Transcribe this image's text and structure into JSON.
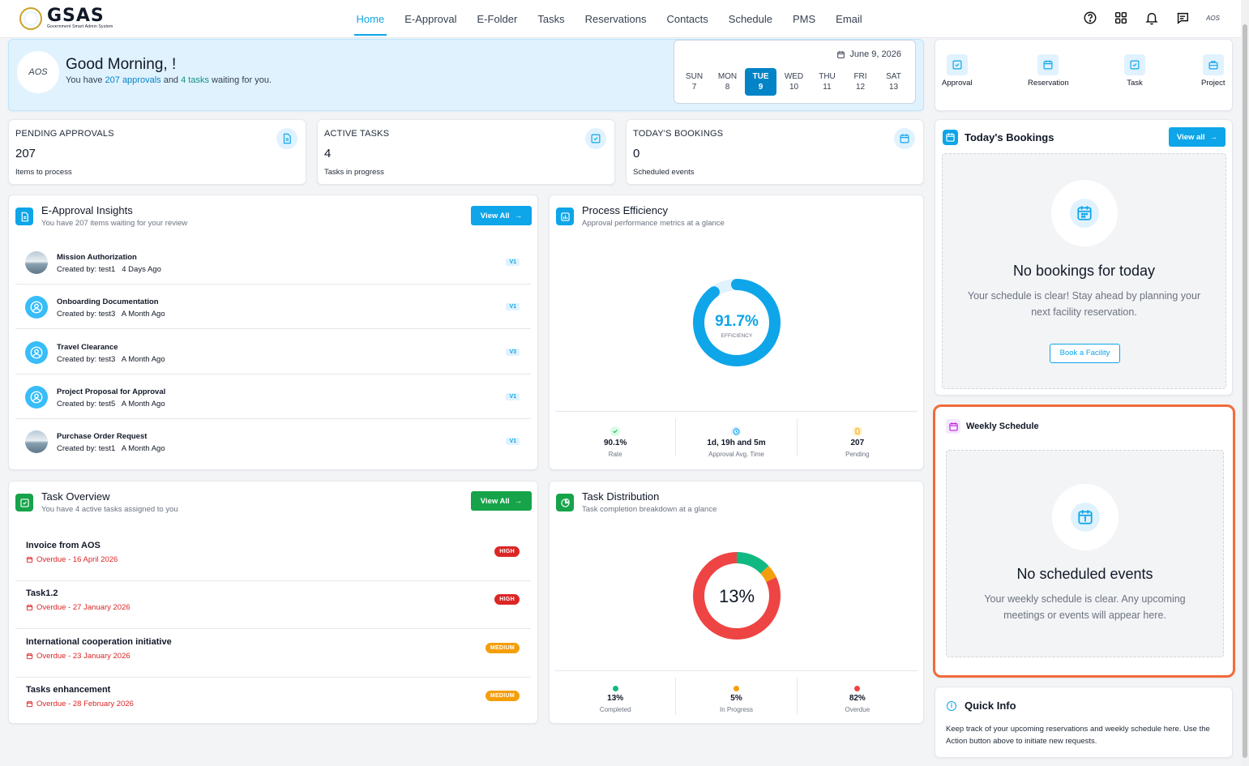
{
  "app": {
    "name": "GSAS",
    "subtitle": "Government Smart Admin System"
  },
  "nav": {
    "items": [
      "Home",
      "E-Approval",
      "E-Folder",
      "Tasks",
      "Reservations",
      "Contacts",
      "Schedule",
      "PMS",
      "Email"
    ],
    "active": "Home"
  },
  "topbar": {
    "icons": [
      "help-icon",
      "apps-grid-icon",
      "bell-icon",
      "chat-icon"
    ],
    "user_initials": "AOS"
  },
  "greeting": {
    "title": "Good Morning, !",
    "line_prefix": "You have ",
    "approvals_text": "207 approvals",
    "mid": " and ",
    "tasks_text": "4 tasks",
    "line_suffix": " waiting for you.",
    "avatar": "AOS"
  },
  "calendar": {
    "date": "June 9, 2026",
    "days": [
      {
        "name": "SUN",
        "num": "7"
      },
      {
        "name": "MON",
        "num": "8"
      },
      {
        "name": "TUE",
        "num": "9"
      },
      {
        "name": "WED",
        "num": "10"
      },
      {
        "name": "THU",
        "num": "11"
      },
      {
        "name": "FRI",
        "num": "12"
      },
      {
        "name": "SAT",
        "num": "13"
      }
    ],
    "today": "TUE"
  },
  "stats": [
    {
      "label": "PENDING APPROVALS",
      "value": "207",
      "note": "Items to process"
    },
    {
      "label": "ACTIVE TASKS",
      "value": "4",
      "note": "Tasks in progress"
    },
    {
      "label": "TODAY'S BOOKINGS",
      "value": "0",
      "note": "Scheduled events"
    }
  ],
  "approvals": {
    "title": "E-Approval Insights",
    "subtitle": "You have 207 items waiting for your review",
    "view_all": "View All",
    "items": [
      {
        "title": "Mission Authorization",
        "meta": "Created by: test1   4 Days Ago",
        "version": "V1",
        "avatar": "photo"
      },
      {
        "title": "Onboarding Documentation",
        "meta": "Created by: test3   A Month Ago",
        "version": "V1",
        "avatar": "user"
      },
      {
        "title": "Travel Clearance",
        "meta": "Created by: test3   A Month Ago",
        "version": "V3",
        "avatar": "user"
      },
      {
        "title": "Project Proposal for Approval",
        "meta": "Created by: test5   A Month Ago",
        "version": "V1",
        "avatar": "user"
      },
      {
        "title": "Purchase Order Request",
        "meta": "Created by: test1   A Month Ago",
        "version": "V1",
        "avatar": "photo"
      }
    ]
  },
  "efficiency": {
    "title": "Process Efficiency",
    "subtitle": "Approval performance metrics at a glance",
    "value": "91.7%",
    "percent": 91.7,
    "label": "EFFICIENCY",
    "metrics": [
      {
        "value": "90.1%",
        "label": "Rate",
        "color": "#22c55e"
      },
      {
        "value": "1d, 19h and 5m",
        "label": "Approval Avg. Time",
        "color": "#0ea5e9"
      },
      {
        "value": "207",
        "label": "Pending",
        "color": "#f59e0b"
      }
    ]
  },
  "tasks": {
    "title": "Task Overview",
    "subtitle": "You have 4 active tasks assigned to you",
    "view_all": "View All",
    "items": [
      {
        "title": "Invoice from AOS",
        "due": "Overdue - 16 April 2026",
        "priority": "HIGH"
      },
      {
        "title": "Task1.2",
        "due": "Overdue - 27 January 2026",
        "priority": "HIGH"
      },
      {
        "title": "International cooperation initiative",
        "due": "Overdue - 23 January 2026",
        "priority": "MEDIUM"
      },
      {
        "title": "Tasks enhancement",
        "due": "Overdue - 28 February 2026",
        "priority": "MEDIUM"
      }
    ]
  },
  "distribution": {
    "title": "Task Distribution",
    "subtitle": "Task completion breakdown at a glance",
    "center": "13%",
    "segments": [
      {
        "value": "13%",
        "label": "Completed",
        "percent": 13,
        "color": "#10b981"
      },
      {
        "value": "5%",
        "label": "In Progress",
        "percent": 5,
        "color": "#f59e0b"
      },
      {
        "value": "82%",
        "label": "Overdue",
        "percent": 82,
        "color": "#ef4444"
      }
    ]
  },
  "quick_actions": [
    {
      "label": "Approval",
      "icon": "file-check-icon"
    },
    {
      "label": "Reservation",
      "icon": "calendar-icon"
    },
    {
      "label": "Task",
      "icon": "check-square-icon"
    },
    {
      "label": "Project",
      "icon": "briefcase-icon"
    }
  ],
  "bookings": {
    "title": "Today's Bookings",
    "view_all": "View all",
    "empty_title": "No bookings for today",
    "empty_text": "Your schedule is clear! Stay ahead by planning your next facility reservation.",
    "button": "Book a Facility"
  },
  "weekly": {
    "title": "Weekly Schedule",
    "empty_title": "No scheduled events",
    "empty_text": "Your weekly schedule is clear. Any upcoming meetings or events will appear here.",
    "highlight_color": "#f26b3a"
  },
  "quick_info": {
    "title": "Quick Info",
    "text": "Keep track of your upcoming reservations and weekly schedule here. Use the Action button above to initiate new requests."
  }
}
